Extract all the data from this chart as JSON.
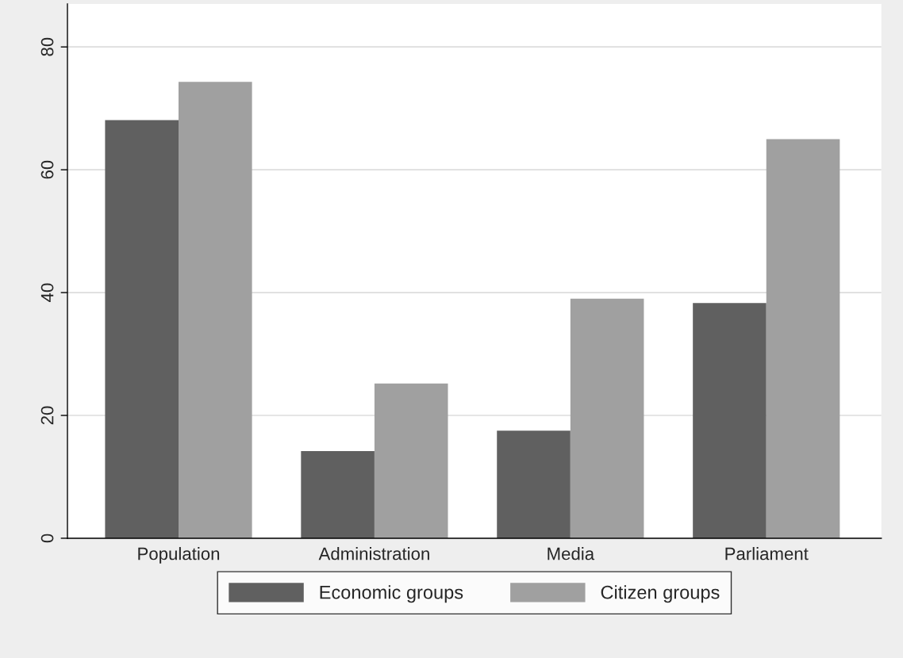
{
  "chart_data": {
    "type": "bar",
    "categories": [
      "Population",
      "Administration",
      "Media",
      "Parliament"
    ],
    "series": [
      {
        "name": "Economic groups",
        "color": "#606060",
        "values": [
          68.1,
          14.2,
          17.5,
          38.3
        ]
      },
      {
        "name": "Citizen groups",
        "color": "#a0a0a0",
        "values": [
          74.3,
          25.2,
          39.0,
          65.0
        ]
      }
    ],
    "ylim": [
      0,
      87
    ],
    "yticks": [
      0,
      20,
      40,
      60,
      80
    ],
    "grid": "y",
    "legend": "bottom"
  }
}
